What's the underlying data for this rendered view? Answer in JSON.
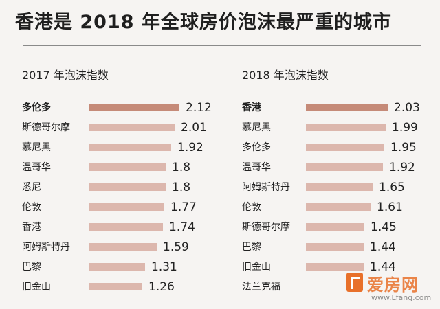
{
  "title": "香港是 2018 年全球房价泡沫最严重的城市",
  "chart_data": [
    {
      "type": "bar",
      "title": "2017 年泡沫指数",
      "categories": [
        "多伦多",
        "斯德哥尔摩",
        "慕尼黑",
        "温哥华",
        "悉尼",
        "伦敦",
        "香港",
        "阿姆斯特丹",
        "巴黎",
        "旧金山"
      ],
      "values": [
        2.12,
        2.01,
        1.92,
        1.8,
        1.8,
        1.77,
        1.74,
        1.59,
        1.31,
        1.26
      ],
      "value_labels": [
        "2.12",
        "2.01",
        "1.92",
        "1.8",
        "1.8",
        "1.77",
        "1.74",
        "1.59",
        "1.31",
        "1.26"
      ],
      "highlight_index": 0,
      "orientation": "horizontal",
      "xlim": [
        0,
        2.12
      ]
    },
    {
      "type": "bar",
      "title": "2018 年泡沫指数",
      "categories": [
        "香港",
        "慕尼黑",
        "多伦多",
        "温哥华",
        "阿姆斯特丹",
        "伦敦",
        "斯德哥尔摩",
        "巴黎",
        "旧金山",
        "法兰克福"
      ],
      "values": [
        2.03,
        1.99,
        1.95,
        1.92,
        1.65,
        1.61,
        1.45,
        1.44,
        1.44,
        null
      ],
      "value_labels": [
        "2.03",
        "1.99",
        "1.95",
        "1.92",
        "1.65",
        "1.61",
        "1.45",
        "1.44",
        "1.44",
        ""
      ],
      "highlight_index": 0,
      "orientation": "horizontal",
      "xlim": [
        0,
        2.12
      ]
    }
  ],
  "watermark": {
    "brand": "爱房网",
    "url": "www.Lfang.com",
    "accent_color": "#e8702a"
  },
  "colors": {
    "bar": "#dcb7ad",
    "bar_highlight": "#c58a78",
    "background": "#f6f4f2"
  }
}
